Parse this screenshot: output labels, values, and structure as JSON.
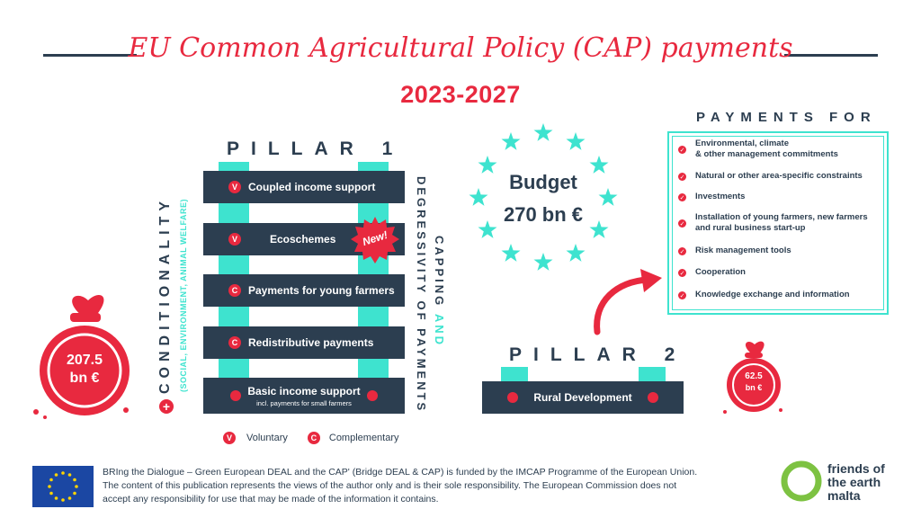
{
  "header": {
    "title": "EU Common Agricultural Policy (CAP) payments",
    "years": "2023-2027"
  },
  "pillar1": {
    "heading": "PILLAR 1",
    "items": [
      {
        "badge": "V",
        "label": "Coupled income support"
      },
      {
        "badge": "V",
        "label": "Ecoschemes",
        "tag": "New!"
      },
      {
        "badge": "C",
        "label": "Payments for young farmers"
      },
      {
        "badge": "C",
        "label": "Redistributive payments"
      },
      {
        "label": "Basic income support",
        "sublabel": "incl. payments for small farmers"
      }
    ],
    "bag_amount": "207.5",
    "bag_unit": "bn €"
  },
  "conditionality": {
    "main": "CONDITIONALITY",
    "sub": "(SOCIAL, ENVIRONMENT, ANIMAL WELFARE)",
    "plus": "+"
  },
  "capping": {
    "line1_a": "CAPPING",
    "line1_b": "AND",
    "line2": "DEGRESSIVITY OF PAYMENTS"
  },
  "budget": {
    "label": "Budget",
    "amount": "270 bn €"
  },
  "payments_for": {
    "heading": "PAYMENTS FOR",
    "items": [
      {
        "line1": "Environmental, climate",
        "line2": "& other management commitments"
      },
      {
        "line1": "Natural or other area-specific constraints"
      },
      {
        "line1": "Investments"
      },
      {
        "line1": "Installation of young farmers, new farmers",
        "line2": "and rural business start-up"
      },
      {
        "line1": "Risk management tools"
      },
      {
        "line1": "Cooperation"
      },
      {
        "line1": "Knowledge exchange and information"
      }
    ]
  },
  "pillar2": {
    "heading": "PILLAR 2",
    "bar_label": "Rural Development",
    "bag_amount": "62.5",
    "bag_unit": "bn €"
  },
  "legend": {
    "v_badge": "V",
    "v_label": "Voluntary",
    "c_badge": "C",
    "c_label": "Complementary"
  },
  "footer": {
    "line1": "BRIng the Dialogue – Green European DEAL and the CAP' (Bridge DEAL & CAP) is funded by the IMCAP Programme of the European Union.",
    "line2": "The content of this publication represents the views of the author only and is their sole responsibility. The European Commission does not",
    "line3": "accept any responsibility for use that may be made of the information it contains.",
    "logo_line1": "friends of",
    "logo_line2": "the earth",
    "logo_line3": "malta"
  },
  "colors": {
    "red": "#e8293f",
    "navy": "#2c3e50",
    "teal": "#3ee3cf",
    "eu_blue": "#1b47a3",
    "eu_gold": "#ffd400",
    "foe_green": "#7dc242"
  }
}
